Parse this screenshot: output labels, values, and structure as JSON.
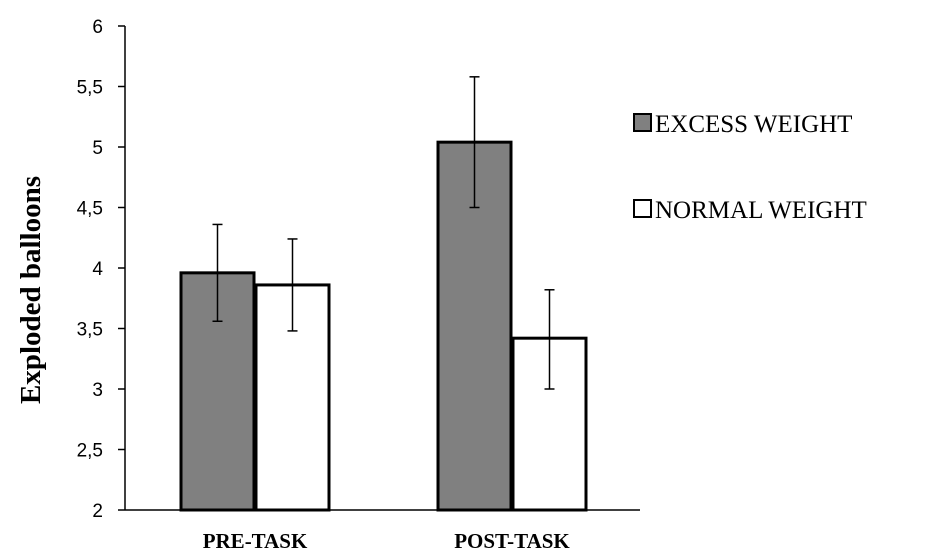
{
  "chart_data": {
    "type": "bar",
    "title": "",
    "xlabel": "",
    "ylabel": "Exploded balloons",
    "categories": [
      "PRE-TASK",
      "POST-TASK"
    ],
    "ylim": [
      2,
      6
    ],
    "yticks": [
      "2",
      "2,5",
      "3",
      "3,5",
      "4",
      "4,5",
      "5",
      "5,5",
      "6"
    ],
    "ytick_values": [
      2,
      2.5,
      3,
      3.5,
      4,
      4.5,
      5,
      5.5,
      6
    ],
    "grid": false,
    "legend_position": "right",
    "series": [
      {
        "name": "EXCESS WEIGHT",
        "color": "#808080",
        "values": [
          3.96,
          5.04
        ],
        "error_low": [
          3.56,
          4.5
        ],
        "error_high": [
          4.36,
          5.58
        ]
      },
      {
        "name": "NORMAL WEIGHT",
        "color": "#ffffff",
        "values": [
          3.86,
          3.42
        ],
        "error_low": [
          3.48,
          3.0
        ],
        "error_high": [
          4.24,
          3.82
        ]
      }
    ]
  }
}
